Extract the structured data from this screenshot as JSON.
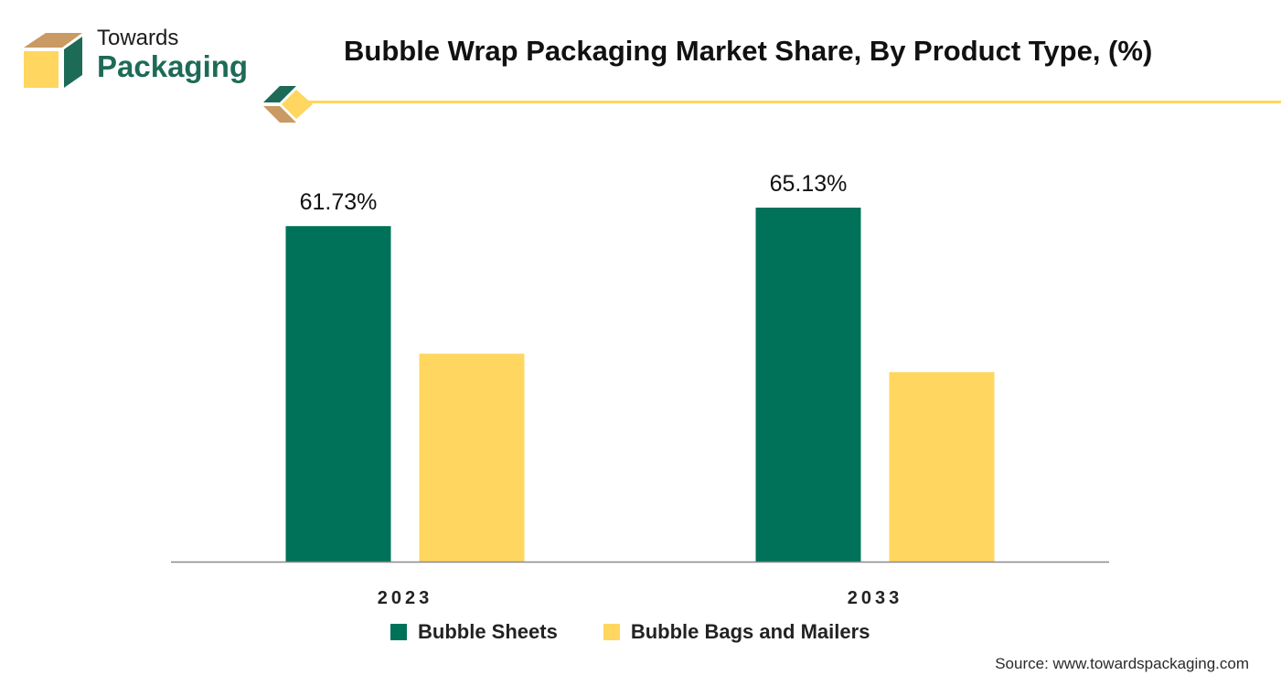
{
  "brand": {
    "line1": "Towards",
    "line2": "Packaging"
  },
  "colors": {
    "primary": "#007259",
    "secondary": "#FFD65F",
    "logo_tan": "#C99A63",
    "logo_green": "#1D6B57",
    "rule": "#FFD65F"
  },
  "chart_data": {
    "type": "bar",
    "title": "Bubble Wrap Packaging Market Share, By Product Type, (%)",
    "categories": [
      "2023",
      "2033"
    ],
    "series": [
      {
        "name": "Bubble Sheets",
        "values": [
          61.73,
          65.13
        ],
        "labels": [
          "61.73%",
          "65.13%"
        ],
        "color": "#007259"
      },
      {
        "name": "Bubble Bags and Mailers",
        "values": [
          38.27,
          34.87
        ],
        "labels": [
          "",
          ""
        ],
        "color": "#FFD65F"
      }
    ],
    "ylim": [
      0,
      65.13
    ],
    "grid": false,
    "legend": "bottom"
  },
  "source": "Source: www.towardspackaging.com"
}
